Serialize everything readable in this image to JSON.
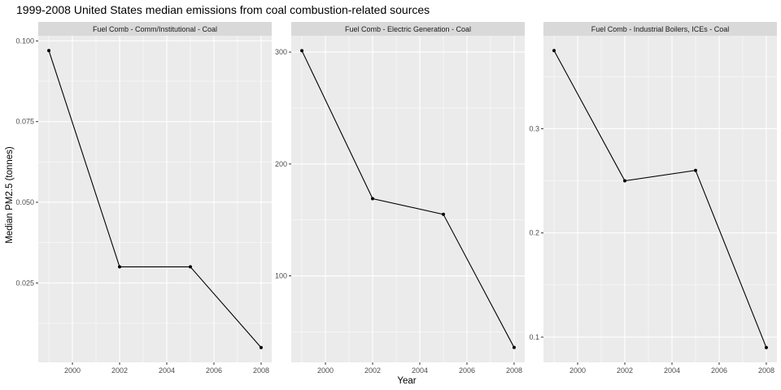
{
  "chart_data": {
    "type": "line",
    "title": "1999-2008 United States median emissions from coal combustion-related sources",
    "xlabel": "Year",
    "ylabel": "Median PM2.5 (tonnes)",
    "grid": true,
    "legend": "none",
    "colors": {
      "panel_bg": "#ebebeb",
      "strip_bg": "#d9d9d9",
      "grid_major": "#ffffff",
      "line": "#000000"
    },
    "x_ticks": [
      2000,
      2002,
      2004,
      2006,
      2008
    ],
    "panels": [
      {
        "facet": "Fuel Comb - Comm/Institutional - Coal",
        "x": [
          1999,
          2002,
          2005,
          2008
        ],
        "y": [
          0.097,
          0.03,
          0.03,
          0.005
        ],
        "ylim": [
          0.0004,
          0.1016
        ],
        "y_ticks": [
          0.025,
          0.05,
          0.075,
          0.1
        ],
        "y_tick_labels": [
          "0.025",
          "0.050",
          "0.075",
          "0.100"
        ]
      },
      {
        "facet": "Fuel Comb - Electric Generation - Coal",
        "x": [
          1999,
          2002,
          2005,
          2008
        ],
        "y": [
          301.3,
          169.0,
          155.0,
          36.0
        ],
        "ylim": [
          22.7,
          314.6
        ],
        "y_ticks": [
          100,
          200,
          300
        ],
        "y_tick_labels": [
          "100",
          "200",
          "300"
        ]
      },
      {
        "facet": "Fuel Comb - Industrial Boilers, ICEs - Coal",
        "x": [
          1999,
          2002,
          2005,
          2008
        ],
        "y": [
          0.375,
          0.25,
          0.26,
          0.09
        ],
        "ylim": [
          0.0758,
          0.3892
        ],
        "y_ticks": [
          0.1,
          0.2,
          0.3
        ],
        "y_tick_labels": [
          "0.1",
          "0.2",
          "0.3"
        ]
      }
    ]
  }
}
